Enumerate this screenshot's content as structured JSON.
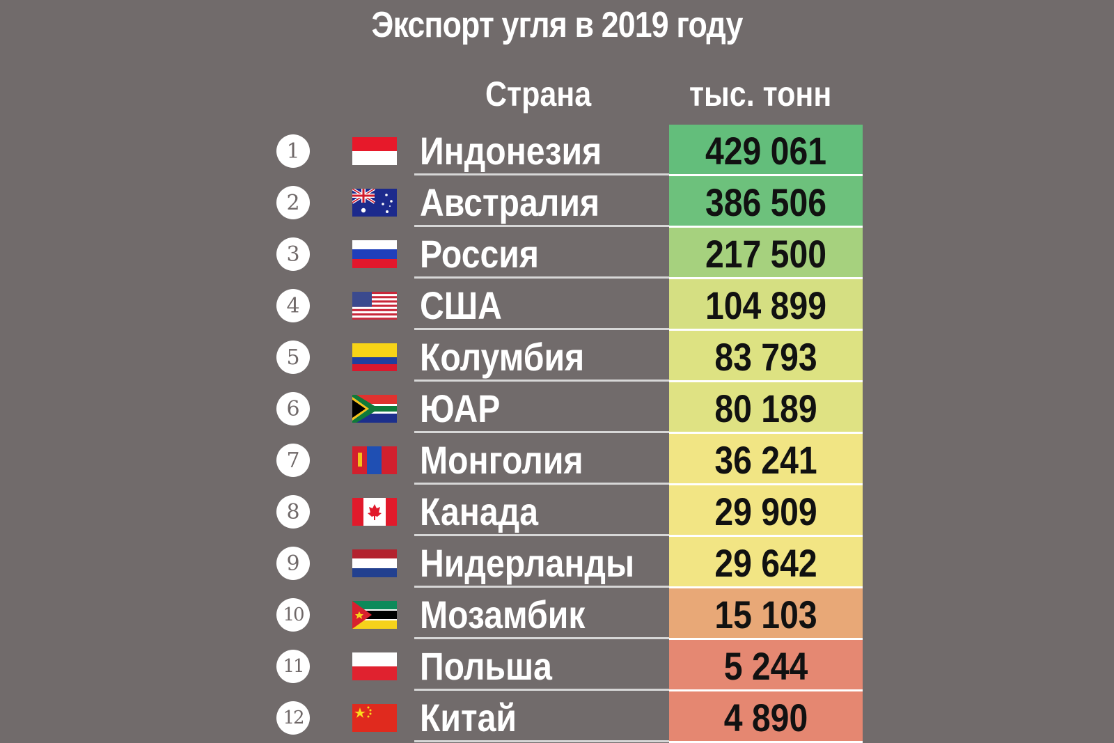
{
  "title": "Экспорт угля в 2019 году",
  "headers": {
    "country": "Страна",
    "value": "тыс. тонн"
  },
  "chart_data": {
    "type": "table",
    "title": "Экспорт угля в 2019 году",
    "columns": [
      "Страна",
      "тыс. тонн"
    ],
    "rows": [
      {
        "rank": "1",
        "country": "Индонезия",
        "value": "429 061",
        "flag": "flag-indonesia-icon",
        "color": "#63be7b"
      },
      {
        "rank": "2",
        "country": "Австралия",
        "value": "386 506",
        "flag": "flag-australia-icon",
        "color": "#6dc17c"
      },
      {
        "rank": "3",
        "country": "Россия",
        "value": "217 500",
        "flag": "flag-russia-icon",
        "color": "#a6d17e"
      },
      {
        "rank": "4",
        "country": "США",
        "value": "104 899",
        "flag": "flag-usa-icon",
        "color": "#d5df82"
      },
      {
        "rank": "5",
        "country": "Колумбия",
        "value": "83 793",
        "flag": "flag-colombia-icon",
        "color": "#dde282"
      },
      {
        "rank": "6",
        "country": "ЮАР",
        "value": "80 189",
        "flag": "flag-south-africa-icon",
        "color": "#dfe283"
      },
      {
        "rank": "7",
        "country": "Монголия",
        "value": "36 241",
        "flag": "flag-mongolia-icon",
        "color": "#f1e584"
      },
      {
        "rank": "8",
        "country": "Канада",
        "value": "29 909",
        "flag": "flag-canada-icon",
        "color": "#f2e584"
      },
      {
        "rank": "9",
        "country": "Нидерланды",
        "value": "29 642",
        "flag": "flag-netherlands-icon",
        "color": "#f2e584"
      },
      {
        "rank": "10",
        "country": "Мозамбик",
        "value": "15 103",
        "flag": "flag-mozambique-icon",
        "color": "#e8a877"
      },
      {
        "rank": "11",
        "country": "Польша",
        "value": "5 244",
        "flag": "flag-poland-icon",
        "color": "#e58872"
      },
      {
        "rank": "12",
        "country": "Китай",
        "value": "4 890",
        "flag": "flag-china-icon",
        "color": "#e58771"
      }
    ]
  }
}
